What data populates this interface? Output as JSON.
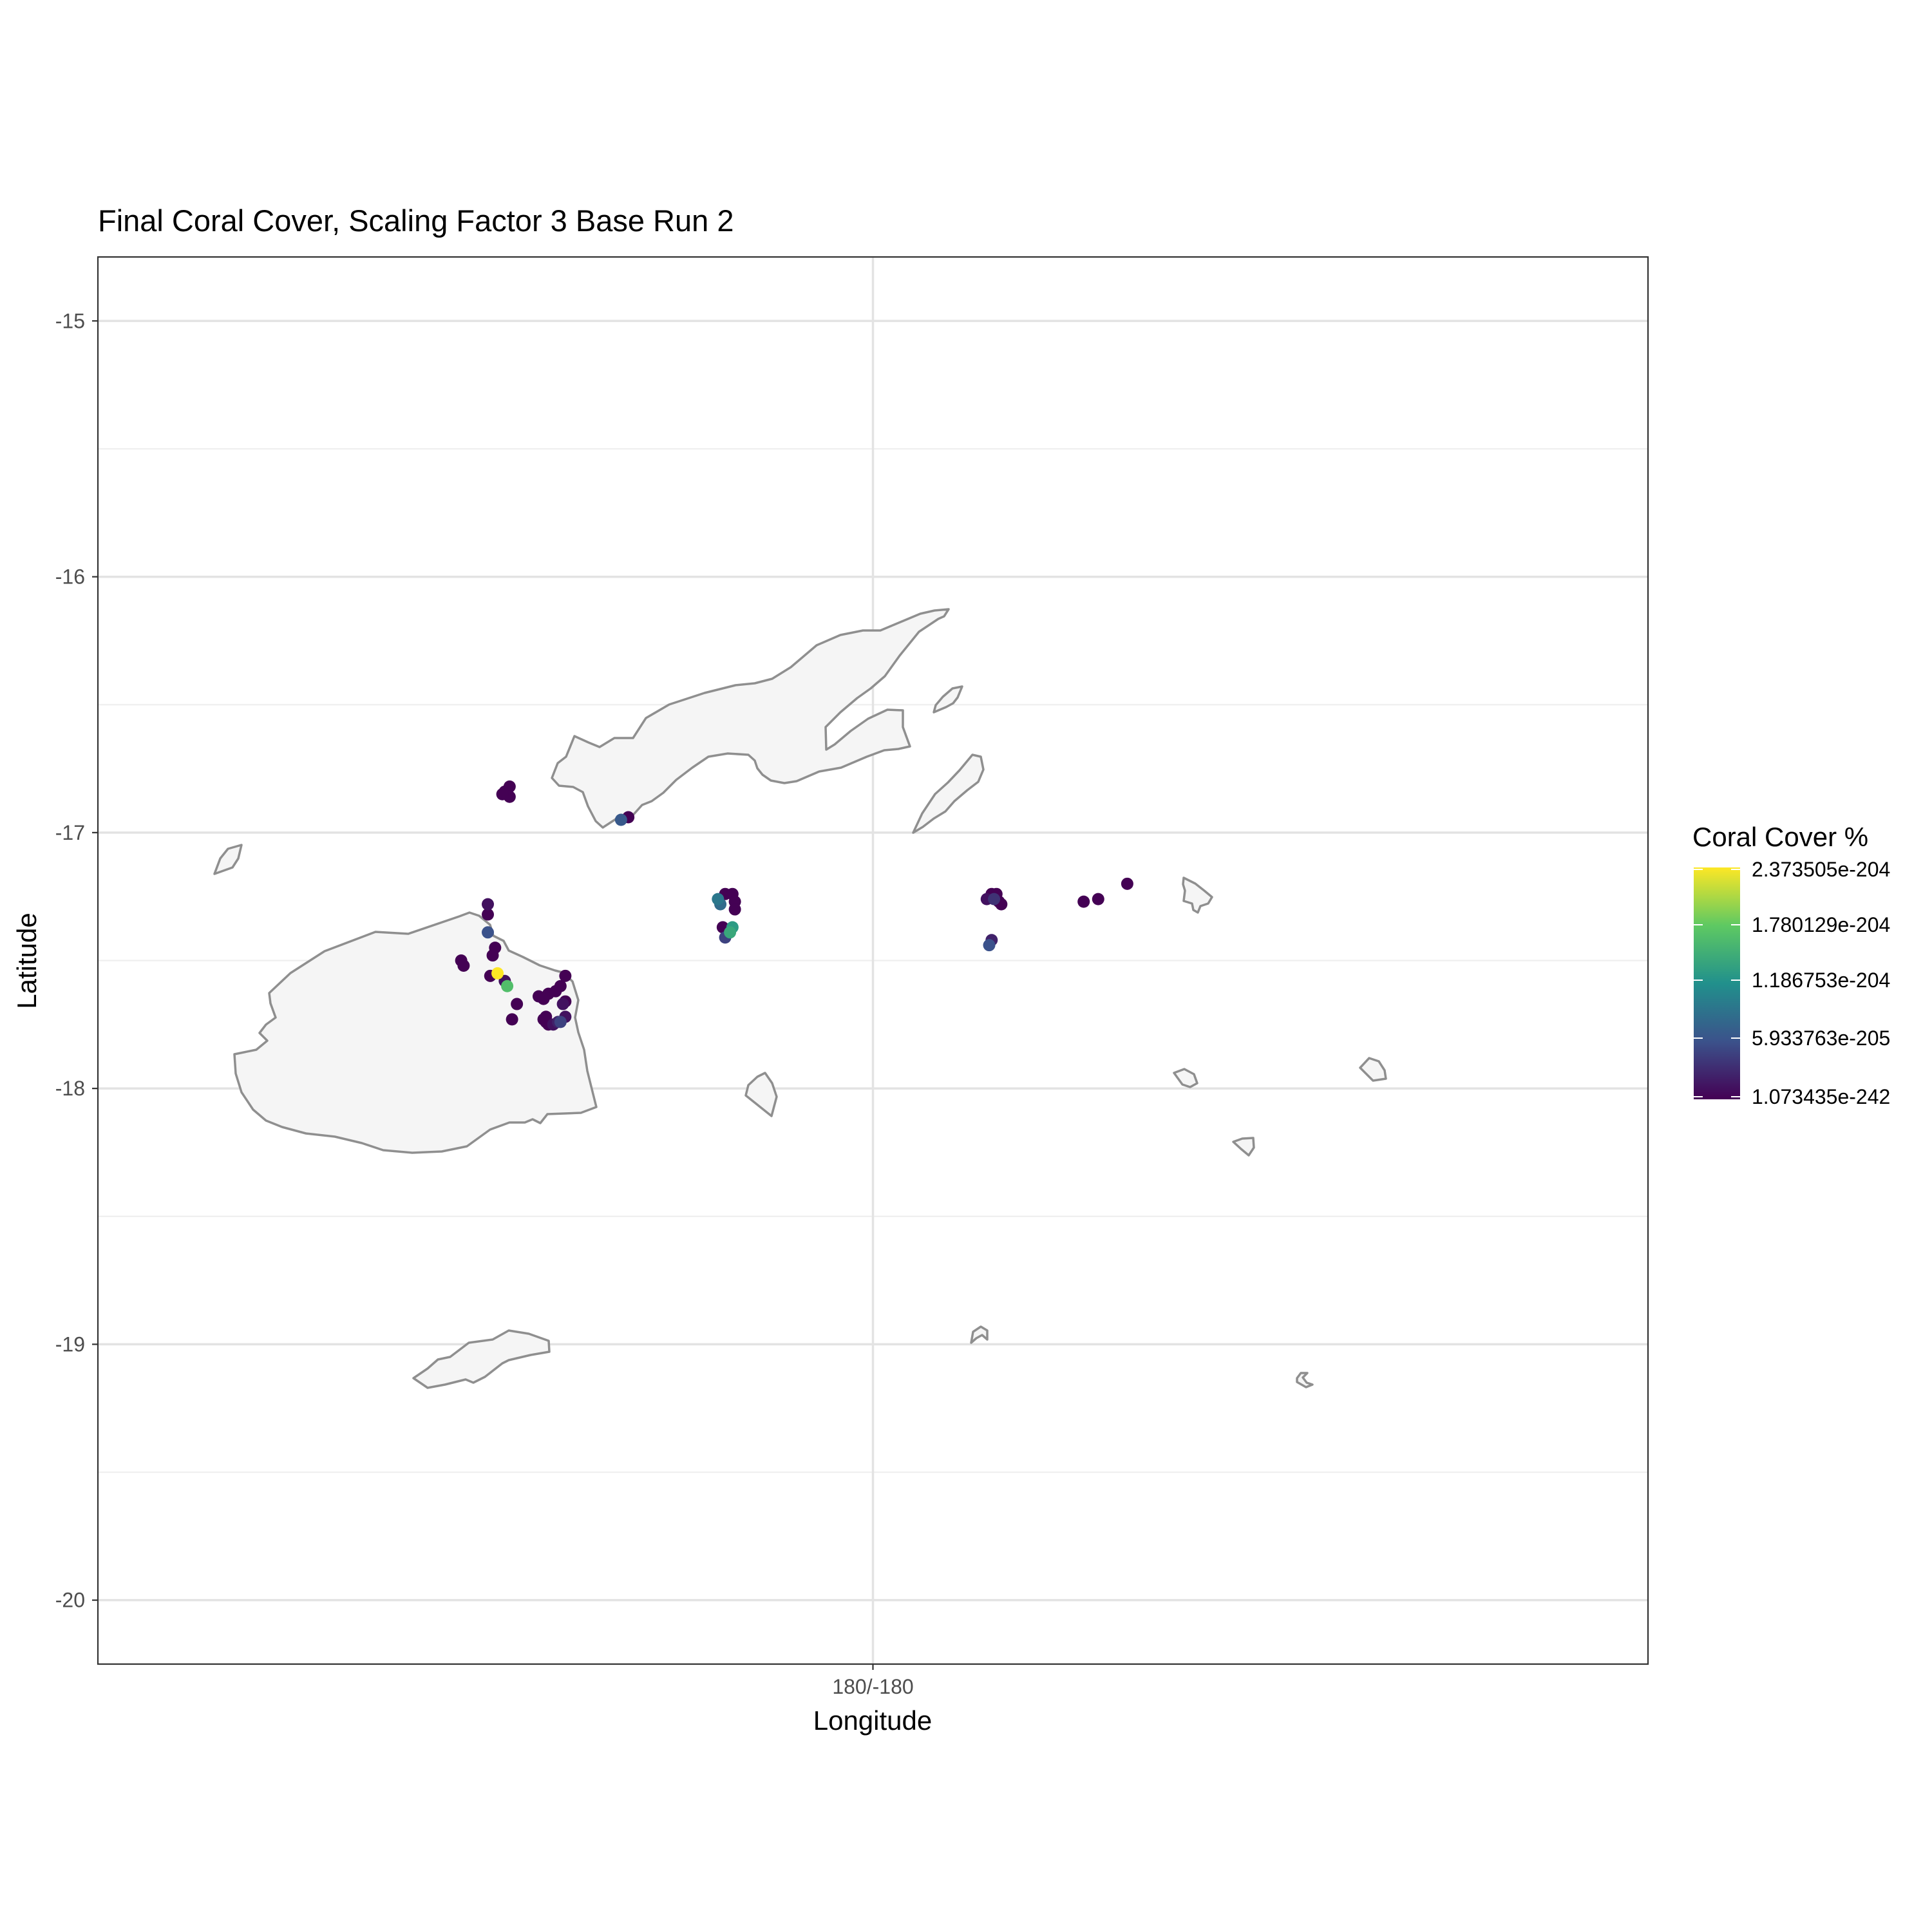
{
  "chart_data": {
    "type": "scatter",
    "title": "Final Coral Cover, Scaling Factor  3  Base Run 2",
    "xlabel": "Longitude",
    "ylabel": "Latitude",
    "x_ticks": [
      "180/-180"
    ],
    "y_ticks": [
      -15,
      -16,
      -17,
      -18,
      -19,
      -20
    ],
    "x_range_lon": [
      176.8,
      183.2
    ],
    "ylim": [
      -20.25,
      -14.75
    ],
    "grid": true,
    "legend": {
      "title": "Coral Cover %",
      "position": "right",
      "labels": [
        "2.373505e-204",
        "1.780129e-204",
        "1.186753e-204",
        "5.933763e-205",
        "1.073435e-242"
      ],
      "colors": [
        "#FDE725",
        "#5EC962",
        "#21908C",
        "#3B528B",
        "#440154"
      ]
    },
    "land_color": "#f5f5f5",
    "coast_color": "#8f8f8f",
    "series": [
      {
        "points": [
          [
            178.48,
            -16.84,
            0.0
          ],
          [
            178.5,
            -16.82,
            0.0
          ],
          [
            178.5,
            -16.86,
            0.0
          ],
          [
            178.47,
            -16.85,
            0.0
          ],
          [
            178.96,
            -16.95,
            0.28
          ],
          [
            178.99,
            -16.94,
            0.0
          ],
          [
            178.41,
            -17.28,
            0.05
          ],
          [
            178.41,
            -17.32,
            0.0
          ],
          [
            178.41,
            -17.39,
            0.25
          ],
          [
            178.44,
            -17.45,
            0.0
          ],
          [
            178.43,
            -17.48,
            0.0
          ],
          [
            178.3,
            -17.5,
            0.0
          ],
          [
            178.31,
            -17.52,
            0.0
          ],
          [
            178.42,
            -17.56,
            0.0
          ],
          [
            178.45,
            -17.55,
            1.0
          ],
          [
            178.48,
            -17.58,
            0.05
          ],
          [
            178.49,
            -17.6,
            0.7
          ],
          [
            178.53,
            -17.67,
            0.0
          ],
          [
            178.51,
            -17.73,
            0.0
          ],
          [
            178.62,
            -17.64,
            0.0
          ],
          [
            178.64,
            -17.65,
            0.0
          ],
          [
            178.66,
            -17.63,
            0.0
          ],
          [
            178.69,
            -17.62,
            0.0
          ],
          [
            178.71,
            -17.6,
            0.0
          ],
          [
            178.73,
            -17.56,
            0.0
          ],
          [
            178.73,
            -17.66,
            0.0
          ],
          [
            178.72,
            -17.67,
            0.05
          ],
          [
            178.65,
            -17.72,
            0.0
          ],
          [
            178.66,
            -17.75,
            0.0
          ],
          [
            178.68,
            -17.75,
            0.05
          ],
          [
            178.71,
            -17.74,
            0.2
          ],
          [
            178.73,
            -17.72,
            0.05
          ],
          [
            178.7,
            -17.74,
            0.1
          ],
          [
            178.65,
            -17.74,
            0.0
          ],
          [
            178.64,
            -17.73,
            0.0
          ],
          [
            179.36,
            -17.26,
            0.4
          ],
          [
            179.37,
            -17.28,
            0.35
          ],
          [
            179.39,
            -17.24,
            0.0
          ],
          [
            179.42,
            -17.24,
            0.0
          ],
          [
            179.43,
            -17.27,
            0.0
          ],
          [
            179.43,
            -17.3,
            0.0
          ],
          [
            179.38,
            -17.37,
            0.0
          ],
          [
            179.39,
            -17.41,
            0.2
          ],
          [
            179.41,
            -17.39,
            0.6
          ],
          [
            179.42,
            -17.37,
            0.55
          ],
          [
            180.47,
            -17.26,
            0.05
          ],
          [
            180.49,
            -17.24,
            0.0
          ],
          [
            180.51,
            -17.24,
            0.0
          ],
          [
            180.52,
            -17.27,
            0.0
          ],
          [
            180.53,
            -17.28,
            0.0
          ],
          [
            180.5,
            -17.26,
            0.15
          ],
          [
            180.48,
            -17.44,
            0.25
          ],
          [
            180.49,
            -17.42,
            0.1
          ],
          [
            180.87,
            -17.27,
            0.0
          ],
          [
            180.93,
            -17.26,
            0.0
          ],
          [
            181.05,
            -17.2,
            0.0
          ]
        ]
      }
    ]
  }
}
